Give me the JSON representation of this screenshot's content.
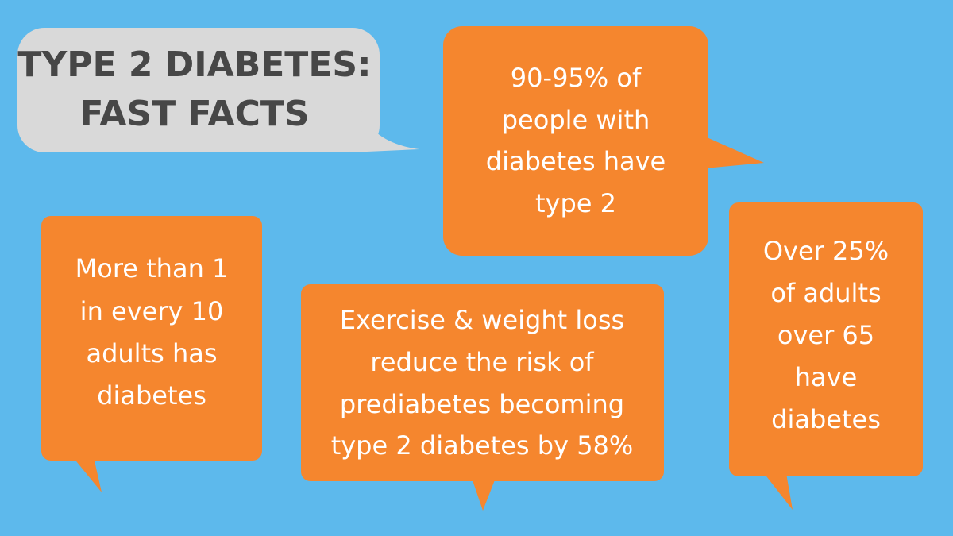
{
  "header": {
    "title_lines": [
      "TYPE 2 DIABETES:",
      "FAST FACTS"
    ]
  },
  "facts": [
    {
      "lines": [
        "90-95% of",
        "people with",
        "diabetes have",
        "type 2"
      ]
    },
    {
      "lines": [
        "More than 1",
        "in every 10",
        "adults has",
        "diabetes"
      ]
    },
    {
      "lines": [
        "Exercise & weight loss",
        "reduce the risk of",
        "prediabetes becoming",
        "type 2 diabetes by 58%"
      ]
    },
    {
      "lines": [
        "Over 25%",
        "of adults",
        "over 65",
        "have",
        "diabetes"
      ]
    }
  ]
}
